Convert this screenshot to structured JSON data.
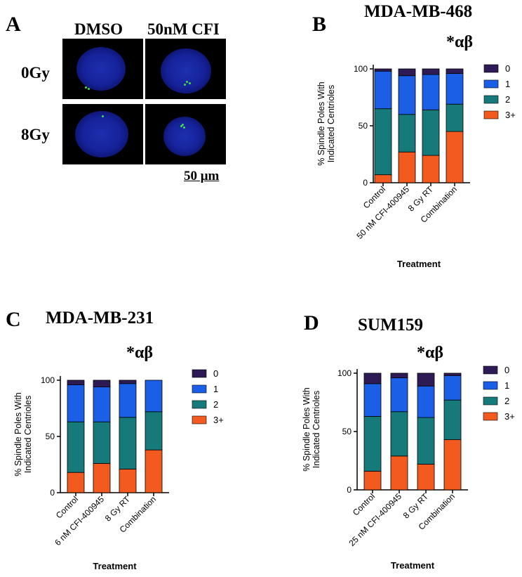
{
  "panelA": {
    "letter": "A",
    "col_labels": [
      "DMSO",
      "50nM CFI"
    ],
    "row_labels": [
      "0Gy",
      "8Gy"
    ],
    "scale_bar": "50 μm"
  },
  "legend": {
    "colors": {
      "0": "#2e1a55",
      "1": "#1a5fe6",
      "2": "#177a7a",
      "3+": "#f25a1f"
    }
  },
  "chart_data": [
    {
      "id": "B",
      "letter": "B",
      "type": "bar",
      "stacked": true,
      "title": "MDA-MB-468",
      "significance": "*αβ",
      "ylabel": "% Spindle Poles With Indicated Centrioles",
      "xlabel": "Treatment",
      "ylim": [
        0,
        100
      ],
      "yticks": [
        0,
        50,
        100
      ],
      "categories": [
        "Control",
        "50 nM CFI-400945",
        "8 Gy RT",
        "Combination"
      ],
      "series": [
        {
          "name": "3+",
          "values": [
            7,
            27,
            24,
            45
          ]
        },
        {
          "name": "2",
          "values": [
            58,
            33,
            40,
            24
          ]
        },
        {
          "name": "1",
          "values": [
            33,
            34,
            31,
            27
          ]
        },
        {
          "name": "0",
          "values": [
            2,
            6,
            5,
            4
          ]
        }
      ],
      "legend": [
        "0",
        "1",
        "2",
        "3+"
      ]
    },
    {
      "id": "C",
      "letter": "C",
      "type": "bar",
      "stacked": true,
      "title": "MDA-MB-231",
      "significance": "*αβ",
      "ylabel": "% Spindle Poles With Indicated Centrioles",
      "xlabel": "Treatment",
      "ylim": [
        0,
        100
      ],
      "yticks": [
        0,
        50,
        100
      ],
      "categories": [
        "Control",
        "6 nM CFI-400945",
        "8 Gy RT",
        "Combination"
      ],
      "series": [
        {
          "name": "3+",
          "values": [
            18,
            26,
            21,
            38
          ]
        },
        {
          "name": "2",
          "values": [
            45,
            37,
            46,
            34
          ]
        },
        {
          "name": "1",
          "values": [
            33,
            31,
            30,
            28
          ]
        },
        {
          "name": "0",
          "values": [
            4,
            6,
            3,
            0
          ]
        }
      ],
      "legend": [
        "0",
        "1",
        "2",
        "3+"
      ]
    },
    {
      "id": "D",
      "letter": "D",
      "type": "bar",
      "stacked": true,
      "title": "SUM159",
      "significance": "*αβ",
      "ylabel": "% Spindle Poles With Indicated Centrioles",
      "xlabel": "Treatment",
      "ylim": [
        0,
        100
      ],
      "yticks": [
        0,
        50,
        100
      ],
      "categories": [
        "Control",
        "25 nM CFI-400945",
        "8 Gy RT",
        "Combination"
      ],
      "series": [
        {
          "name": "3+",
          "values": [
            16,
            29,
            22,
            43
          ]
        },
        {
          "name": "2",
          "values": [
            47,
            38,
            40,
            34
          ]
        },
        {
          "name": "1",
          "values": [
            28,
            29,
            27,
            21
          ]
        },
        {
          "name": "0",
          "values": [
            9,
            4,
            11,
            2
          ]
        }
      ],
      "legend": [
        "0",
        "1",
        "2",
        "3+"
      ]
    }
  ]
}
